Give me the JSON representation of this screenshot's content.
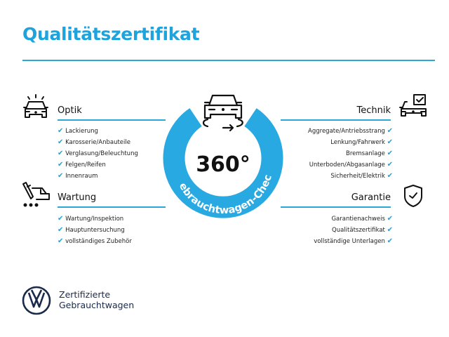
{
  "title": "Qualitätszertifikat",
  "center": {
    "degrees": "360°",
    "arc_text": "Gebrauchtwagen-Check"
  },
  "sections": {
    "optik": {
      "title": "Optik",
      "icon": "car-lights-icon",
      "items": [
        "Lackierung",
        "Karosserie/Anbauteile",
        "Verglasung/Beleuchtung",
        "Felgen/Reifen",
        "Innenraum"
      ]
    },
    "wartung": {
      "title": "Wartung",
      "icon": "service-tools-icon",
      "items": [
        "Wartung/Inspektion",
        "Hauptuntersuchung",
        "vollständiges Zubehör"
      ]
    },
    "technik": {
      "title": "Technik",
      "icon": "car-checklist-icon",
      "items": [
        "Aggregate/Antriebsstrang",
        "Lenkung/Fahrwerk",
        "Bremsanlage",
        "Unterboden/Abgasanlage",
        "Sicherheit/Elektrik"
      ]
    },
    "garantie": {
      "title": "Garantie",
      "icon": "shield-check-icon",
      "items": [
        "Garantienachweis",
        "Qualitätszertifikat",
        "vollständige Unterlagen"
      ]
    }
  },
  "brand": {
    "line1": "Zertifizierte",
    "line2": "Gebrauchtwagen",
    "logo": "vw-logo"
  },
  "colors": {
    "accent": "#1fa3dc",
    "ring": "#29a9e1",
    "brand": "#1a2a4a"
  },
  "check_glyph": "✔"
}
